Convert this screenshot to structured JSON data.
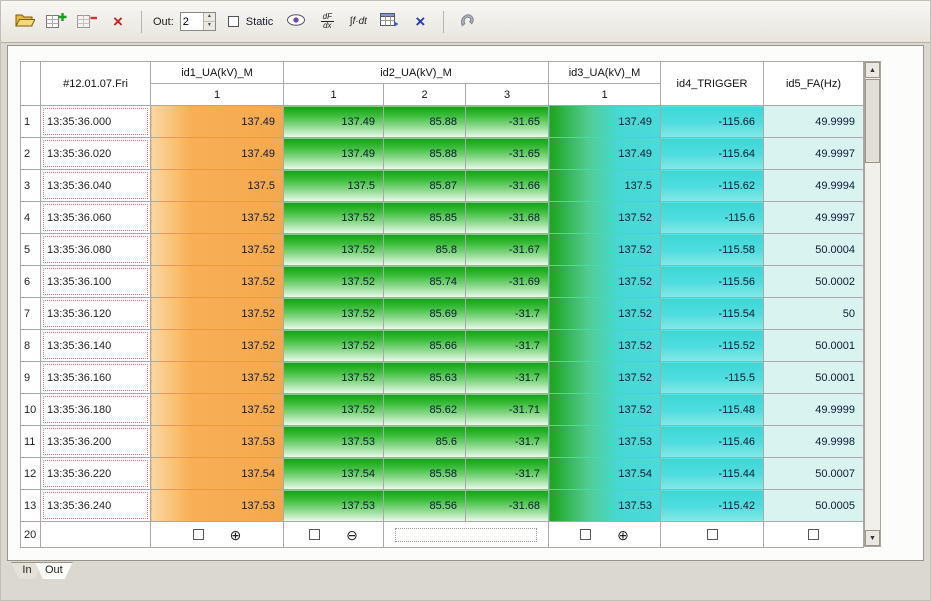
{
  "toolbar": {
    "out_label": "Out:",
    "out_value": "2",
    "static_label": "Static",
    "icons": [
      {
        "name": "open-icon"
      },
      {
        "name": "add-frame-icon"
      },
      {
        "name": "remove-frame-icon"
      },
      {
        "name": "delete-icon"
      },
      {
        "name": "eye-icon"
      },
      {
        "name": "derivative-icon"
      },
      {
        "name": "integral-icon"
      },
      {
        "name": "export-table-icon"
      },
      {
        "name": "close-icon"
      },
      {
        "name": "tools-icon"
      }
    ],
    "glyphs": {
      "delete": "×",
      "close": "×",
      "deriv_top": "dF",
      "deriv_bottom": "dx",
      "integral": "∫f·dt"
    }
  },
  "table": {
    "date_header": "#12.01.07.Fri",
    "groups": [
      {
        "label": "id1_UA(kV)_M",
        "subcols": [
          "1"
        ]
      },
      {
        "label": "id2_UA(kV)_M",
        "subcols": [
          "1",
          "2",
          "3"
        ]
      },
      {
        "label": "id3_UA(kV)_M",
        "subcols": [
          "1"
        ]
      },
      {
        "label": "id4_TRIGGER",
        "subcols": []
      },
      {
        "label": "id5_FA(Hz)",
        "subcols": []
      }
    ],
    "rows": [
      {
        "num": "1",
        "time": "13:35:36.000",
        "values": [
          "137.49",
          "137.49",
          "85.88",
          "-31.65",
          "137.49",
          "-115.66",
          "49.9999"
        ]
      },
      {
        "num": "2",
        "time": "13:35:36.020",
        "values": [
          "137.49",
          "137.49",
          "85.88",
          "-31.65",
          "137.49",
          "-115.64",
          "49.9997"
        ]
      },
      {
        "num": "3",
        "time": "13:35:36.040",
        "values": [
          "137.5",
          "137.5",
          "85.87",
          "-31.66",
          "137.5",
          "-115.62",
          "49.9994"
        ]
      },
      {
        "num": "4",
        "time": "13:35:36.060",
        "values": [
          "137.52",
          "137.52",
          "85.85",
          "-31.68",
          "137.52",
          "-115.6",
          "49.9997"
        ]
      },
      {
        "num": "5",
        "time": "13:35:36.080",
        "values": [
          "137.52",
          "137.52",
          "85.8",
          "-31.67",
          "137.52",
          "-115.58",
          "50.0004"
        ]
      },
      {
        "num": "6",
        "time": "13:35:36.100",
        "values": [
          "137.52",
          "137.52",
          "85.74",
          "-31.69",
          "137.52",
          "-115.56",
          "50.0002"
        ]
      },
      {
        "num": "7",
        "time": "13:35:36.120",
        "values": [
          "137.52",
          "137.52",
          "85.69",
          "-31.7",
          "137.52",
          "-115.54",
          "50"
        ]
      },
      {
        "num": "8",
        "time": "13:35:36.140",
        "values": [
          "137.52",
          "137.52",
          "85.66",
          "-31.7",
          "137.52",
          "-115.52",
          "50.0001"
        ]
      },
      {
        "num": "9",
        "time": "13:35:36.160",
        "values": [
          "137.52",
          "137.52",
          "85.63",
          "-31.7",
          "137.52",
          "-115.5",
          "50.0001"
        ]
      },
      {
        "num": "10",
        "time": "13:35:36.180",
        "values": [
          "137.52",
          "137.52",
          "85.62",
          "-31.71",
          "137.52",
          "-115.48",
          "49.9999"
        ]
      },
      {
        "num": "11",
        "time": "13:35:36.200",
        "values": [
          "137.53",
          "137.53",
          "85.6",
          "-31.7",
          "137.53",
          "-115.46",
          "49.9998"
        ]
      },
      {
        "num": "12",
        "time": "13:35:36.220",
        "values": [
          "137.54",
          "137.54",
          "85.58",
          "-31.7",
          "137.54",
          "-115.44",
          "50.0007"
        ]
      },
      {
        "num": "13",
        "time": "13:35:36.240",
        "values": [
          "137.53",
          "137.53",
          "85.56",
          "-31.68",
          "137.53",
          "-115.42",
          "50.0005"
        ]
      }
    ],
    "footer": {
      "row_num": "20",
      "expand_glyph": "⊕",
      "collapse_glyph": "⊖"
    }
  },
  "scrollbar": {
    "up": "▲",
    "down": "▼"
  },
  "spinner": {
    "up": "▲",
    "down": "▼"
  },
  "tabs": [
    {
      "label": "In"
    },
    {
      "label": "Out"
    }
  ],
  "colors": {
    "id1_fill": "#f5a94e",
    "id2_fill": "#14a014",
    "id3_fill": "#4adada",
    "id4_fill": "#3bd7d7",
    "id5_fill": "#d9f3f1",
    "time_dotted_border": "#d07a7a"
  }
}
